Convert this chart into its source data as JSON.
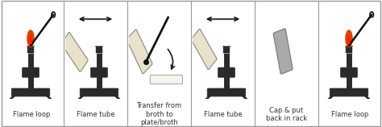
{
  "panels": [
    {
      "label": "Flame loop",
      "type": "flame_loop",
      "arrow": null
    },
    {
      "label": "Flame tube",
      "type": "flame_tube",
      "arrow": "double"
    },
    {
      "label": "Transfer from\nbroth to\nplate/broth",
      "type": "transfer",
      "arrow": null
    },
    {
      "label": "Flame tube",
      "type": "flame_tube2",
      "arrow": "double"
    },
    {
      "label": "Cap & put\nback in rack",
      "type": "cap_rack",
      "arrow": null
    },
    {
      "label": "Flame loop",
      "type": "flame_loop2",
      "arrow": null
    }
  ],
  "n_panels": 6,
  "bg_color": "#ffffff",
  "border_color": "#999999",
  "label_color": "#333333",
  "label_fontsize": 6.0,
  "burner_color": "#2a2a2a",
  "flame_color_outer": "#dd4400",
  "flame_color_inner": "#ff2200",
  "tube_color": "#e8e2cc",
  "tube_border": "#888877",
  "plate_color": "#f5f5ee",
  "plate_border": "#aaaaaa",
  "arrow_color": "#1a1a1a",
  "cap_color": "#aaaaaa",
  "cap_border": "#777777",
  "needle_color": "#111111"
}
